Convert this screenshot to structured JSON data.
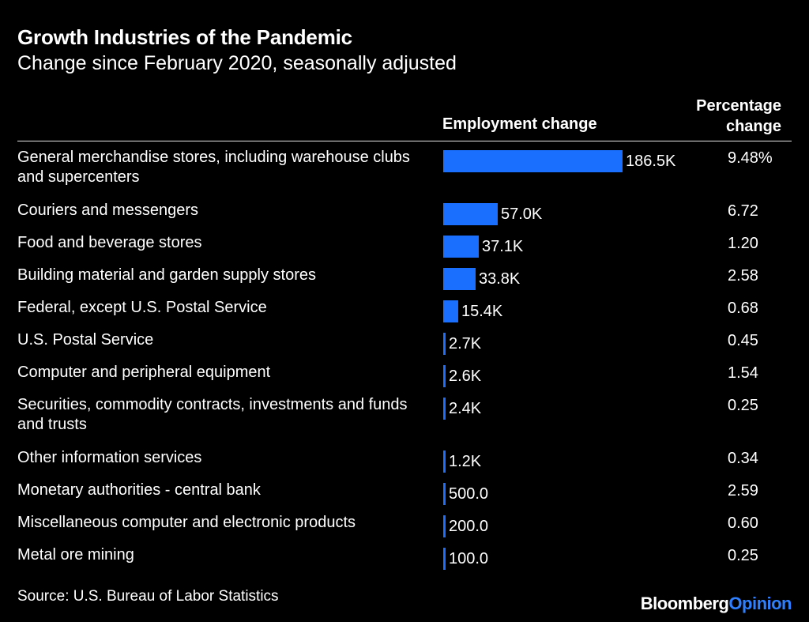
{
  "title": "Growth Industries of the Pandemic",
  "subtitle": "Change since February 2020, seasonally adjusted",
  "column_headers": {
    "employment": "Employment change",
    "percentage_line1": "Percentage",
    "percentage_line2": "change"
  },
  "source": "Source: U.S. Bureau of Labor Statistics",
  "brand": {
    "part1": "Bloomberg",
    "part2": "Opinion"
  },
  "colors": {
    "bar": "#1a6fff",
    "background": "#000000",
    "text": "#ffffff",
    "brand_accent": "#2f80ff"
  },
  "chart_data": {
    "type": "bar",
    "orientation": "horizontal",
    "categories": [
      "General merchandise stores, including warehouse clubs and supercenters",
      "Couriers and messengers",
      "Food and beverage stores",
      "Building material and garden supply stores",
      "Federal, except U.S. Postal Service",
      "U.S. Postal Service",
      "Computer and peripheral equipment",
      "Securities, commodity contracts, investments and funds and trusts",
      "Other information services",
      "Monetary authorities - central bank",
      "Miscellaneous computer and electronic products",
      "Metal ore mining"
    ],
    "values": [
      186500,
      57000,
      37100,
      33800,
      15400,
      2700,
      2600,
      2400,
      1200,
      500,
      200,
      100
    ],
    "value_labels": [
      "186.5K",
      "57.0K",
      "37.1K",
      "33.8K",
      "15.4K",
      "2.7K",
      "2.6K",
      "2.4K",
      "1.2K",
      "500.0",
      "200.0",
      "100.0"
    ],
    "percentage_change": [
      "9.48%",
      "6.72",
      "1.20",
      "2.58",
      "0.68",
      "0.45",
      "1.54",
      "0.25",
      "0.34",
      "2.59",
      "0.60",
      "0.25"
    ]
  }
}
